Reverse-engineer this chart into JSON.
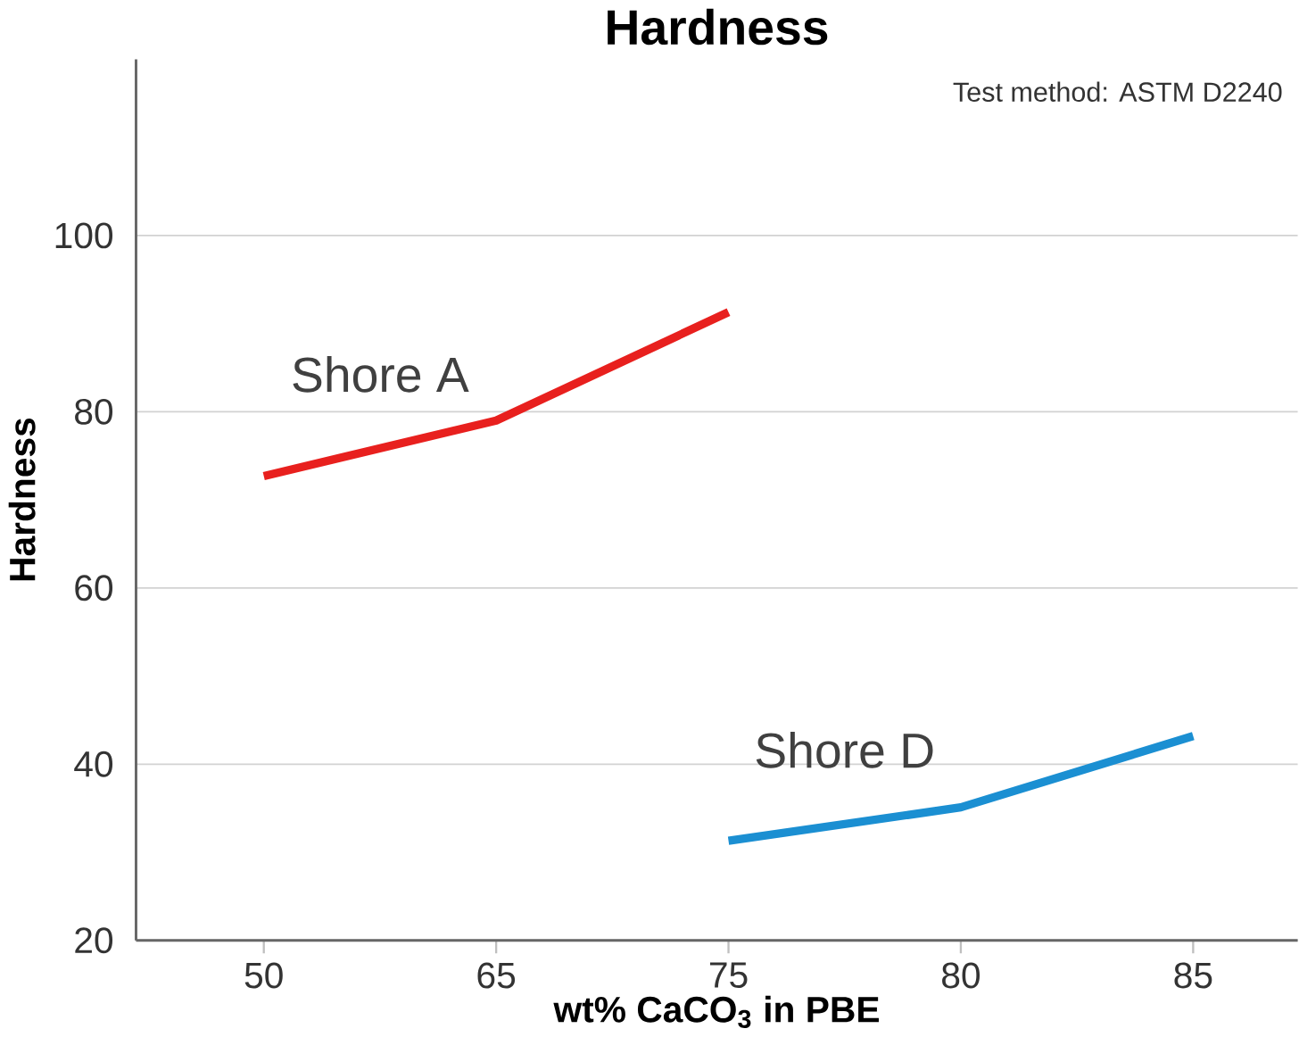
{
  "chart_data": {
    "type": "line",
    "title": "Hardness",
    "xlabel": "wt% CaCO$_{3}$ in PBE",
    "ylabel": "Hardness",
    "categories": [
      "50",
      "65",
      "75",
      "80",
      "85"
    ],
    "series": [
      {
        "name": "Shore A",
        "color": "#e8201e",
        "values": [
          72.7,
          79,
          91.3,
          null,
          null
        ]
      },
      {
        "name": "Shore D",
        "color": "#1b8fd2",
        "values": [
          null,
          null,
          31.3,
          35.1,
          43.2
        ]
      }
    ],
    "ylim": [
      20,
      120
    ],
    "yticks": [
      20,
      40,
      60,
      80,
      100
    ],
    "grid": "y",
    "legend": false,
    "marker": "none",
    "line_style": "solid",
    "annotations": [
      "Test method: ASTM D2240"
    ]
  }
}
